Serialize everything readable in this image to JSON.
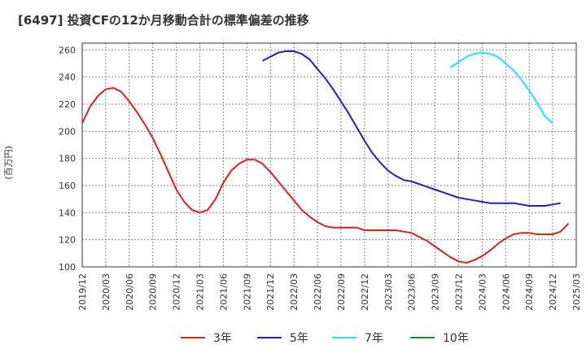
{
  "chart_data": {
    "type": "line",
    "title": "[6497]  投資CFの12か月移動合計の標準偏差の推移",
    "ylabel": "(百万円)",
    "xlabel": "",
    "ylim": [
      100,
      265
    ],
    "yticks": [
      100,
      120,
      140,
      160,
      180,
      200,
      220,
      240,
      260
    ],
    "x_tick_labels": [
      "2019/12",
      "2020/03",
      "2020/06",
      "2020/09",
      "2020/12",
      "2021/03",
      "2021/06",
      "2021/09",
      "2021/12",
      "2022/03",
      "2022/06",
      "2022/09",
      "2022/12",
      "2023/03",
      "2023/06",
      "2023/09",
      "2023/12",
      "2024/03",
      "2024/06",
      "2024/09",
      "2024/12",
      "2025/03"
    ],
    "grid": true,
    "legend_position": "bottom",
    "series": [
      {
        "name": "3年",
        "color": "#dd2020",
        "start": "2019/12",
        "values": [
          206,
          218,
          226,
          231,
          232,
          229,
          222,
          214,
          205,
          195,
          183,
          170,
          157,
          148,
          142,
          140,
          142,
          150,
          162,
          171,
          176,
          179,
          179,
          176,
          170,
          163,
          156,
          149,
          142,
          137,
          133,
          130,
          129,
          129,
          129,
          129,
          127,
          127,
          127,
          127,
          127,
          126,
          125,
          122,
          119,
          115,
          111,
          107,
          104,
          103,
          105,
          108,
          112,
          117,
          121,
          124,
          125,
          125,
          124,
          124,
          124,
          126,
          132
        ]
      },
      {
        "name": "5年",
        "color": "#1f1fcc",
        "start": "2021/11",
        "values": [
          252,
          255,
          258,
          259,
          259,
          257,
          253,
          246,
          239,
          231,
          222,
          213,
          203,
          193,
          184,
          177,
          171,
          167,
          164,
          163,
          161,
          159,
          157,
          155,
          153,
          151,
          150,
          149,
          148,
          147,
          147,
          147,
          147,
          146,
          145,
          145,
          145,
          146,
          147
        ]
      },
      {
        "name": "7年",
        "color": "#19e6f0",
        "start": "2023/11",
        "values": [
          247,
          251,
          255,
          257,
          258,
          257,
          255,
          250,
          245,
          238,
          230,
          221,
          211,
          206
        ]
      },
      {
        "name": "10年",
        "color": "#228b22",
        "start": "2024/12",
        "values": []
      }
    ]
  }
}
